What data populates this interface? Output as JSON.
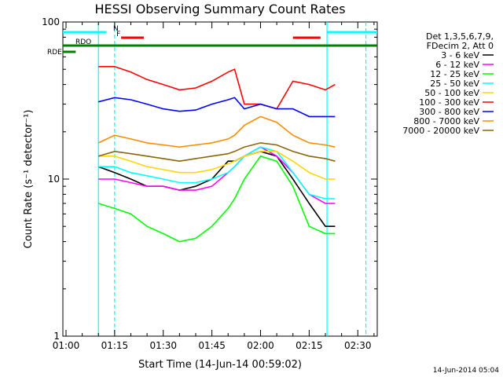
{
  "chart_data": {
    "type": "line",
    "title": "HESSI Observing Summary Count Rates",
    "xlabel": "Start Time (14-Jun-14 00:59:02)",
    "ylabel": "Count Rate (s⁻¹ detector⁻¹)",
    "y_scale": "log",
    "ylim": [
      1,
      100
    ],
    "xlim": [
      "00:59:02",
      "02:36:00"
    ],
    "x_ticks": [
      "01:00",
      "01:15",
      "01:30",
      "01:45",
      "02:00",
      "02:15",
      "02:30"
    ],
    "y_ticks": [
      "1",
      "10",
      "100"
    ],
    "grid": false,
    "legend_position": "right",
    "legend_header": [
      "Det 1,3,5,6,7,9,",
      "FDecim 2, Att 0"
    ],
    "series": [
      {
        "name": "3 - 6 keV",
        "color": "#000000",
        "x": [
          "01:10",
          "01:15",
          "01:20",
          "01:25",
          "01:30",
          "01:35",
          "01:40",
          "01:45",
          "01:50",
          "01:52",
          "01:55",
          "02:00",
          "02:05",
          "02:10",
          "02:15",
          "02:20",
          "02:23"
        ],
        "y": [
          12,
          11,
          10,
          9,
          9,
          8.5,
          9,
          10,
          13,
          13,
          14,
          15,
          14,
          10,
          7,
          5,
          5
        ]
      },
      {
        "name": "6 - 12 keV",
        "color": "#ff00ff",
        "x": [
          "01:10",
          "01:15",
          "01:20",
          "01:25",
          "01:30",
          "01:35",
          "01:40",
          "01:45",
          "01:50",
          "01:52",
          "01:55",
          "02:00",
          "02:05",
          "02:10",
          "02:15",
          "02:20",
          "02:23"
        ],
        "y": [
          10,
          10,
          9.5,
          9,
          9,
          8.5,
          8.5,
          9,
          11,
          12,
          14,
          16,
          14,
          11,
          8,
          7,
          7
        ]
      },
      {
        "name": "12 - 25 keV",
        "color": "#00ff00",
        "x": [
          "01:10",
          "01:15",
          "01:20",
          "01:25",
          "01:30",
          "01:35",
          "01:40",
          "01:45",
          "01:50",
          "01:52",
          "01:55",
          "02:00",
          "02:05",
          "02:10",
          "02:15",
          "02:20",
          "02:23"
        ],
        "y": [
          7,
          6.5,
          6,
          5,
          4.5,
          4,
          4.2,
          5,
          6.5,
          7.5,
          10,
          14,
          13,
          9,
          5,
          4.5,
          4.5
        ]
      },
      {
        "name": "25 - 50 keV",
        "color": "#00ffff",
        "x": [
          "01:10",
          "01:15",
          "01:20",
          "01:25",
          "01:30",
          "01:35",
          "01:40",
          "01:45",
          "01:50",
          "01:52",
          "01:55",
          "02:00",
          "02:05",
          "02:10",
          "02:15",
          "02:20",
          "02:23"
        ],
        "y": [
          12,
          12,
          11,
          10.5,
          10,
          9.5,
          9.5,
          10,
          11,
          12,
          14,
          16,
          15,
          11,
          8,
          7.5,
          7.5
        ]
      },
      {
        "name": "50 - 100 keV",
        "color": "#ffd700",
        "x": [
          "01:10",
          "01:15",
          "01:20",
          "01:25",
          "01:30",
          "01:35",
          "01:40",
          "01:45",
          "01:50",
          "01:52",
          "01:55",
          "02:00",
          "02:05",
          "02:10",
          "02:15",
          "02:20",
          "02:23"
        ],
        "y": [
          14,
          14,
          13,
          12,
          11.5,
          11,
          11,
          11.5,
          12.5,
          13,
          14,
          15,
          15,
          13,
          11,
          10,
          10
        ]
      },
      {
        "name": "100 - 300 keV",
        "color": "#ff0000",
        "x": [
          "01:10",
          "01:15",
          "01:20",
          "01:25",
          "01:30",
          "01:35",
          "01:40",
          "01:45",
          "01:50",
          "01:52",
          "01:55",
          "02:00",
          "02:05",
          "02:10",
          "02:15",
          "02:20",
          "02:23"
        ],
        "y": [
          52,
          52,
          48,
          43,
          40,
          37,
          38,
          42,
          48,
          50,
          30,
          30,
          28,
          42,
          40,
          37,
          40
        ]
      },
      {
        "name": "300 - 800 keV",
        "color": "#0000ff",
        "x": [
          "01:10",
          "01:15",
          "01:20",
          "01:25",
          "01:30",
          "01:35",
          "01:40",
          "01:45",
          "01:50",
          "01:52",
          "01:55",
          "02:00",
          "02:05",
          "02:10",
          "02:15",
          "02:20",
          "02:23"
        ],
        "y": [
          31,
          33,
          32,
          30,
          28,
          27,
          27.5,
          30,
          32,
          33,
          28,
          30,
          28,
          28,
          25,
          25,
          25
        ]
      },
      {
        "name": "800 - 7000 keV",
        "color": "#ff8c00",
        "x": [
          "01:10",
          "01:15",
          "01:20",
          "01:25",
          "01:30",
          "01:35",
          "01:40",
          "01:45",
          "01:50",
          "01:52",
          "01:55",
          "02:00",
          "02:05",
          "02:10",
          "02:15",
          "02:20",
          "02:23"
        ],
        "y": [
          17,
          19,
          18,
          17,
          16.5,
          16,
          16.5,
          17,
          18,
          19,
          22,
          25,
          23,
          19,
          17,
          16.5,
          16
        ]
      },
      {
        "name": "7000 - 20000 keV",
        "color": "#8b6508",
        "x": [
          "01:10",
          "01:15",
          "01:20",
          "01:25",
          "01:30",
          "01:35",
          "01:40",
          "01:45",
          "01:50",
          "01:52",
          "01:55",
          "02:00",
          "02:05",
          "02:10",
          "02:15",
          "02:20",
          "02:23"
        ],
        "y": [
          14,
          15,
          14.5,
          14,
          13.5,
          13,
          13.5,
          14,
          14.5,
          15,
          16,
          17,
          16.5,
          15,
          14,
          13.5,
          13
        ]
      }
    ],
    "annotations": [
      {
        "label": "N",
        "color": "#00ffff",
        "x_start": "00:59:02",
        "x_end": "01:12:30"
      },
      {
        "label": "",
        "color": "#00ffff",
        "x_start": "02:20:30",
        "x_end": "02:36:00"
      },
      {
        "label": "F",
        "color": "#ff0000",
        "x_start": "01:17:00",
        "x_end": "01:24:00"
      },
      {
        "label": "",
        "color": "#ff0000",
        "x_start": "02:10:00",
        "x_end": "02:18:30"
      },
      {
        "label": "RDO",
        "color": "#008000",
        "x_start": "00:59:02",
        "x_end": "01:52:00"
      },
      {
        "label": "",
        "color": "#008000",
        "x_start": "01:52:00",
        "x_end": "02:08:00"
      },
      {
        "label": "",
        "color": "#008000",
        "x_start": "02:08:00",
        "x_end": "02:36:00"
      },
      {
        "label": "RDE",
        "color": "#008000",
        "x_start": "00:59:02",
        "x_end": "01:03:00"
      }
    ],
    "vlines": [
      {
        "x": "01:10:00",
        "color": "#00ffff",
        "style": "solid"
      },
      {
        "x": "01:15:00",
        "color": "#00ffff",
        "style": "dashed"
      },
      {
        "x": "02:20:30",
        "color": "#00ffff",
        "style": "solid"
      },
      {
        "x": "02:32:30",
        "color": "#00ffff",
        "style": "dashed"
      }
    ],
    "footer_timestamp": "14-Jun-2014 05:04"
  }
}
